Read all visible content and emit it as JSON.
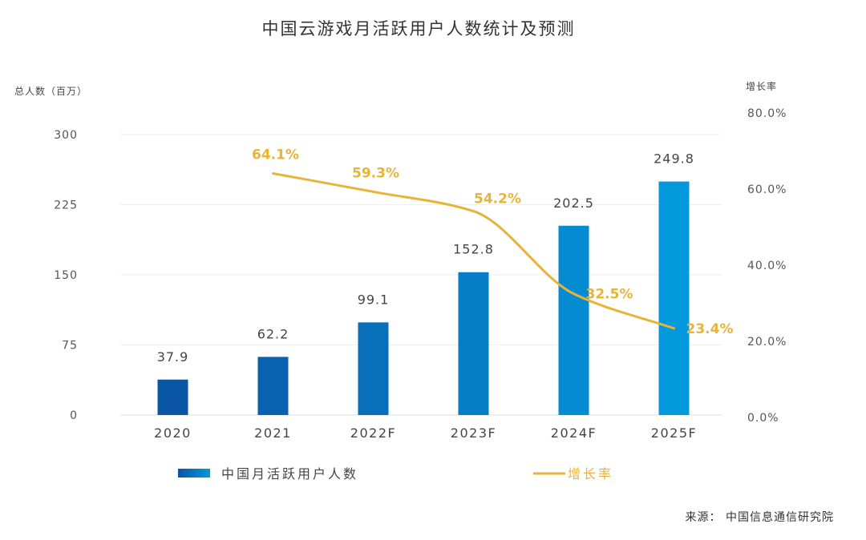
{
  "chart_data": {
    "type": "bar",
    "title": "中国云游戏月活跃用户人数统计及预测",
    "categories": [
      "2020",
      "2021",
      "2022F",
      "2023F",
      "2024F",
      "2025F"
    ],
    "y_left": {
      "label": "总人数（百万）",
      "range": [
        0,
        300
      ],
      "ticks": [
        "0",
        "75",
        "150",
        "225",
        "300"
      ]
    },
    "y_right": {
      "label": "增长率",
      "range": [
        0,
        80
      ],
      "ticks": [
        "0.0%",
        "20.0%",
        "40.0%",
        "60.0%",
        "80.0%"
      ]
    },
    "series": [
      {
        "name": "中国月活跃用户人数",
        "type": "bar",
        "axis": "left",
        "values": [
          37.9,
          62.2,
          99.1,
          152.8,
          202.5,
          249.8
        ],
        "labels": [
          "37.9",
          "62.2",
          "99.1",
          "152.8",
          "202.5",
          "249.8"
        ]
      },
      {
        "name": "增长率",
        "type": "line",
        "axis": "right",
        "values": [
          null,
          64.1,
          59.3,
          54.2,
          32.5,
          23.4
        ],
        "labels": [
          "",
          "64.1%",
          "59.3%",
          "54.2%",
          "32.5%",
          "23.4%"
        ]
      }
    ],
    "grid": true,
    "legend_position": "bottom"
  },
  "colors": {
    "bar_dark": "#0A55A4",
    "bar_light": "#0498DC",
    "line": "#E8B339",
    "grid": "#EEEEEE"
  },
  "source": "来源： 中国信息通信研究院"
}
